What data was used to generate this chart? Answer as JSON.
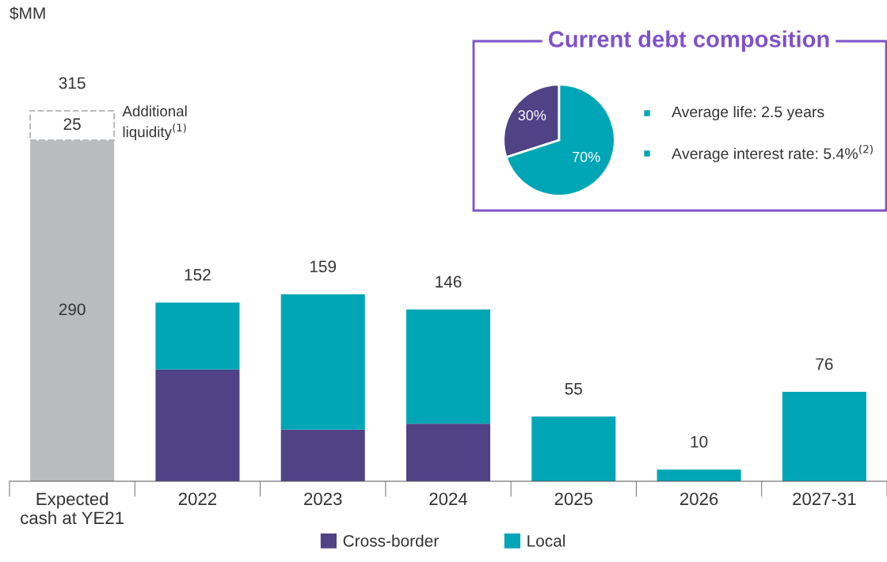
{
  "chart_data": [
    {
      "type": "bar",
      "stacked": true,
      "ylabel": "$MM",
      "categories": [
        "Expected\ncash at YE21",
        "2022",
        "2023",
        "2024",
        "2025",
        "2026",
        "2027-31"
      ],
      "series": [
        {
          "color": "#b9bcbf",
          "values": [
            290,
            null,
            null,
            null,
            null,
            null,
            null
          ],
          "value_labels": [
            "290",
            null,
            null,
            null,
            null,
            null,
            null
          ]
        },
        {
          "name": "Cross-border",
          "color": "#4f4285",
          "values": [
            null,
            95,
            44,
            49,
            null,
            null,
            null
          ]
        },
        {
          "name": "Local",
          "color": "#00a6b5",
          "values": [
            null,
            57,
            115,
            97,
            55,
            10,
            76
          ]
        },
        {
          "color": "#ffffff",
          "line_style": "dashed",
          "values": [
            25,
            null,
            null,
            null,
            null,
            null,
            null
          ],
          "value_labels": [
            "25",
            null,
            null,
            null,
            null,
            null,
            null
          ]
        }
      ],
      "totals": [
        "315",
        "152",
        "159",
        "146",
        "55",
        "10",
        "76"
      ],
      "annotations": [
        "Additional\nliquidity$^{(1)}$"
      ],
      "legend": "bottom"
    },
    {
      "type": "pie",
      "title": "Current debt composition",
      "categories": [
        null,
        null
      ],
      "values": [
        30,
        70
      ],
      "colors": [
        "#4f4285",
        "#00a6b5"
      ],
      "value_labels": [
        "30%",
        "70%"
      ],
      "annotations": [
        "Average life: 2.5 years",
        "Average interest rate: 5.4%$^{(2)}$"
      ]
    }
  ]
}
